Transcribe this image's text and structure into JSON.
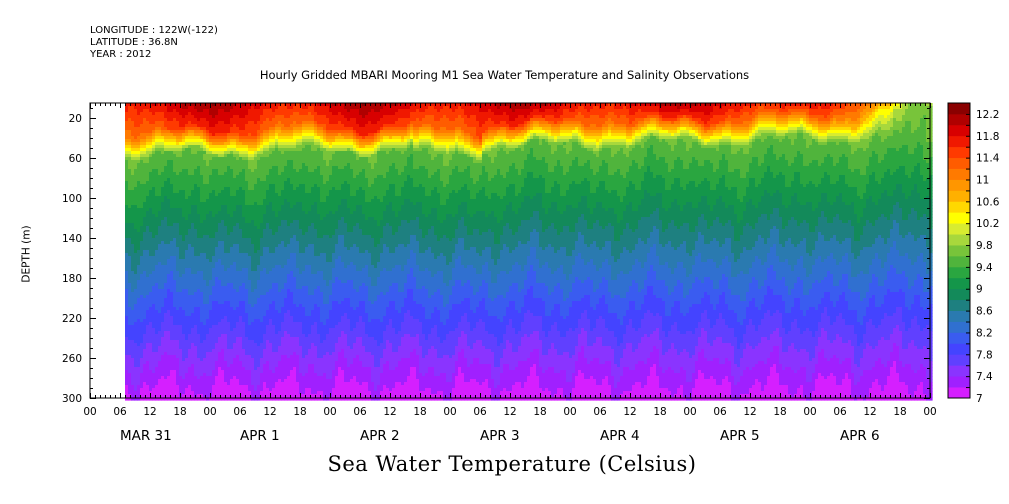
{
  "header": {
    "longitude": "LONGITUDE : 122W(-122)",
    "latitude": "LATITUDE : 36.8N",
    "year": "YEAR : 2012"
  },
  "chart_data": {
    "type": "heatmap",
    "title": "Hourly Gridded MBARI Mooring M1 Sea Water Temperature and Salinity Observations",
    "subtitle": "Sea Water Temperature (Celsius)",
    "ylabel": "DEPTH (m)",
    "xlabel": "",
    "ylim": [
      300,
      5
    ],
    "y_inverted": true,
    "y_ticks": [
      20,
      60,
      100,
      140,
      180,
      220,
      260,
      300
    ],
    "x_hour_labels": [
      "00",
      "06",
      "12",
      "18",
      "00",
      "06",
      "12",
      "18",
      "00",
      "06",
      "12",
      "18",
      "00",
      "06",
      "12",
      "18",
      "00",
      "06",
      "12",
      "18",
      "00",
      "06",
      "12",
      "18",
      "00",
      "06",
      "12",
      "18",
      "00"
    ],
    "x_day_labels": [
      "MAR 31",
      "APR  1",
      "APR  2",
      "APR  3",
      "APR  4",
      "APR  5",
      "APR  6"
    ],
    "x_range_hours": [
      0,
      168
    ],
    "data_start_hour": 7,
    "colorbar": {
      "levels": [
        7.0,
        7.2,
        7.4,
        7.6,
        7.8,
        8.0,
        8.2,
        8.4,
        8.6,
        8.8,
        9.0,
        9.2,
        9.4,
        9.6,
        9.8,
        10.0,
        10.2,
        10.4,
        10.6,
        10.8,
        11.0,
        11.2,
        11.4,
        11.6,
        11.8,
        12.0,
        12.2,
        12.4
      ],
      "colors": [
        "#d51fff",
        "#a020ff",
        "#8a34ff",
        "#6040ff",
        "#4444ff",
        "#3a5cf0",
        "#3070d0",
        "#2a7ab0",
        "#1e8080",
        "#138a5a",
        "#14964a",
        "#2aa640",
        "#50b43c",
        "#78c43a",
        "#a8d83c",
        "#d8ec30",
        "#ffff00",
        "#ffd800",
        "#ffb000",
        "#ff9600",
        "#ff7a00",
        "#ff5c00",
        "#ff3a00",
        "#f01800",
        "#d80000",
        "#b00000",
        "#8a0000"
      ],
      "tick_labels": [
        "7",
        "7.4",
        "7.8",
        "8.2",
        "8.6",
        "9",
        "9.4",
        "9.8",
        "10.2",
        "10.6",
        "11",
        "11.4",
        "11.8",
        "12.2"
      ]
    },
    "grid": false,
    "legend": "right"
  }
}
